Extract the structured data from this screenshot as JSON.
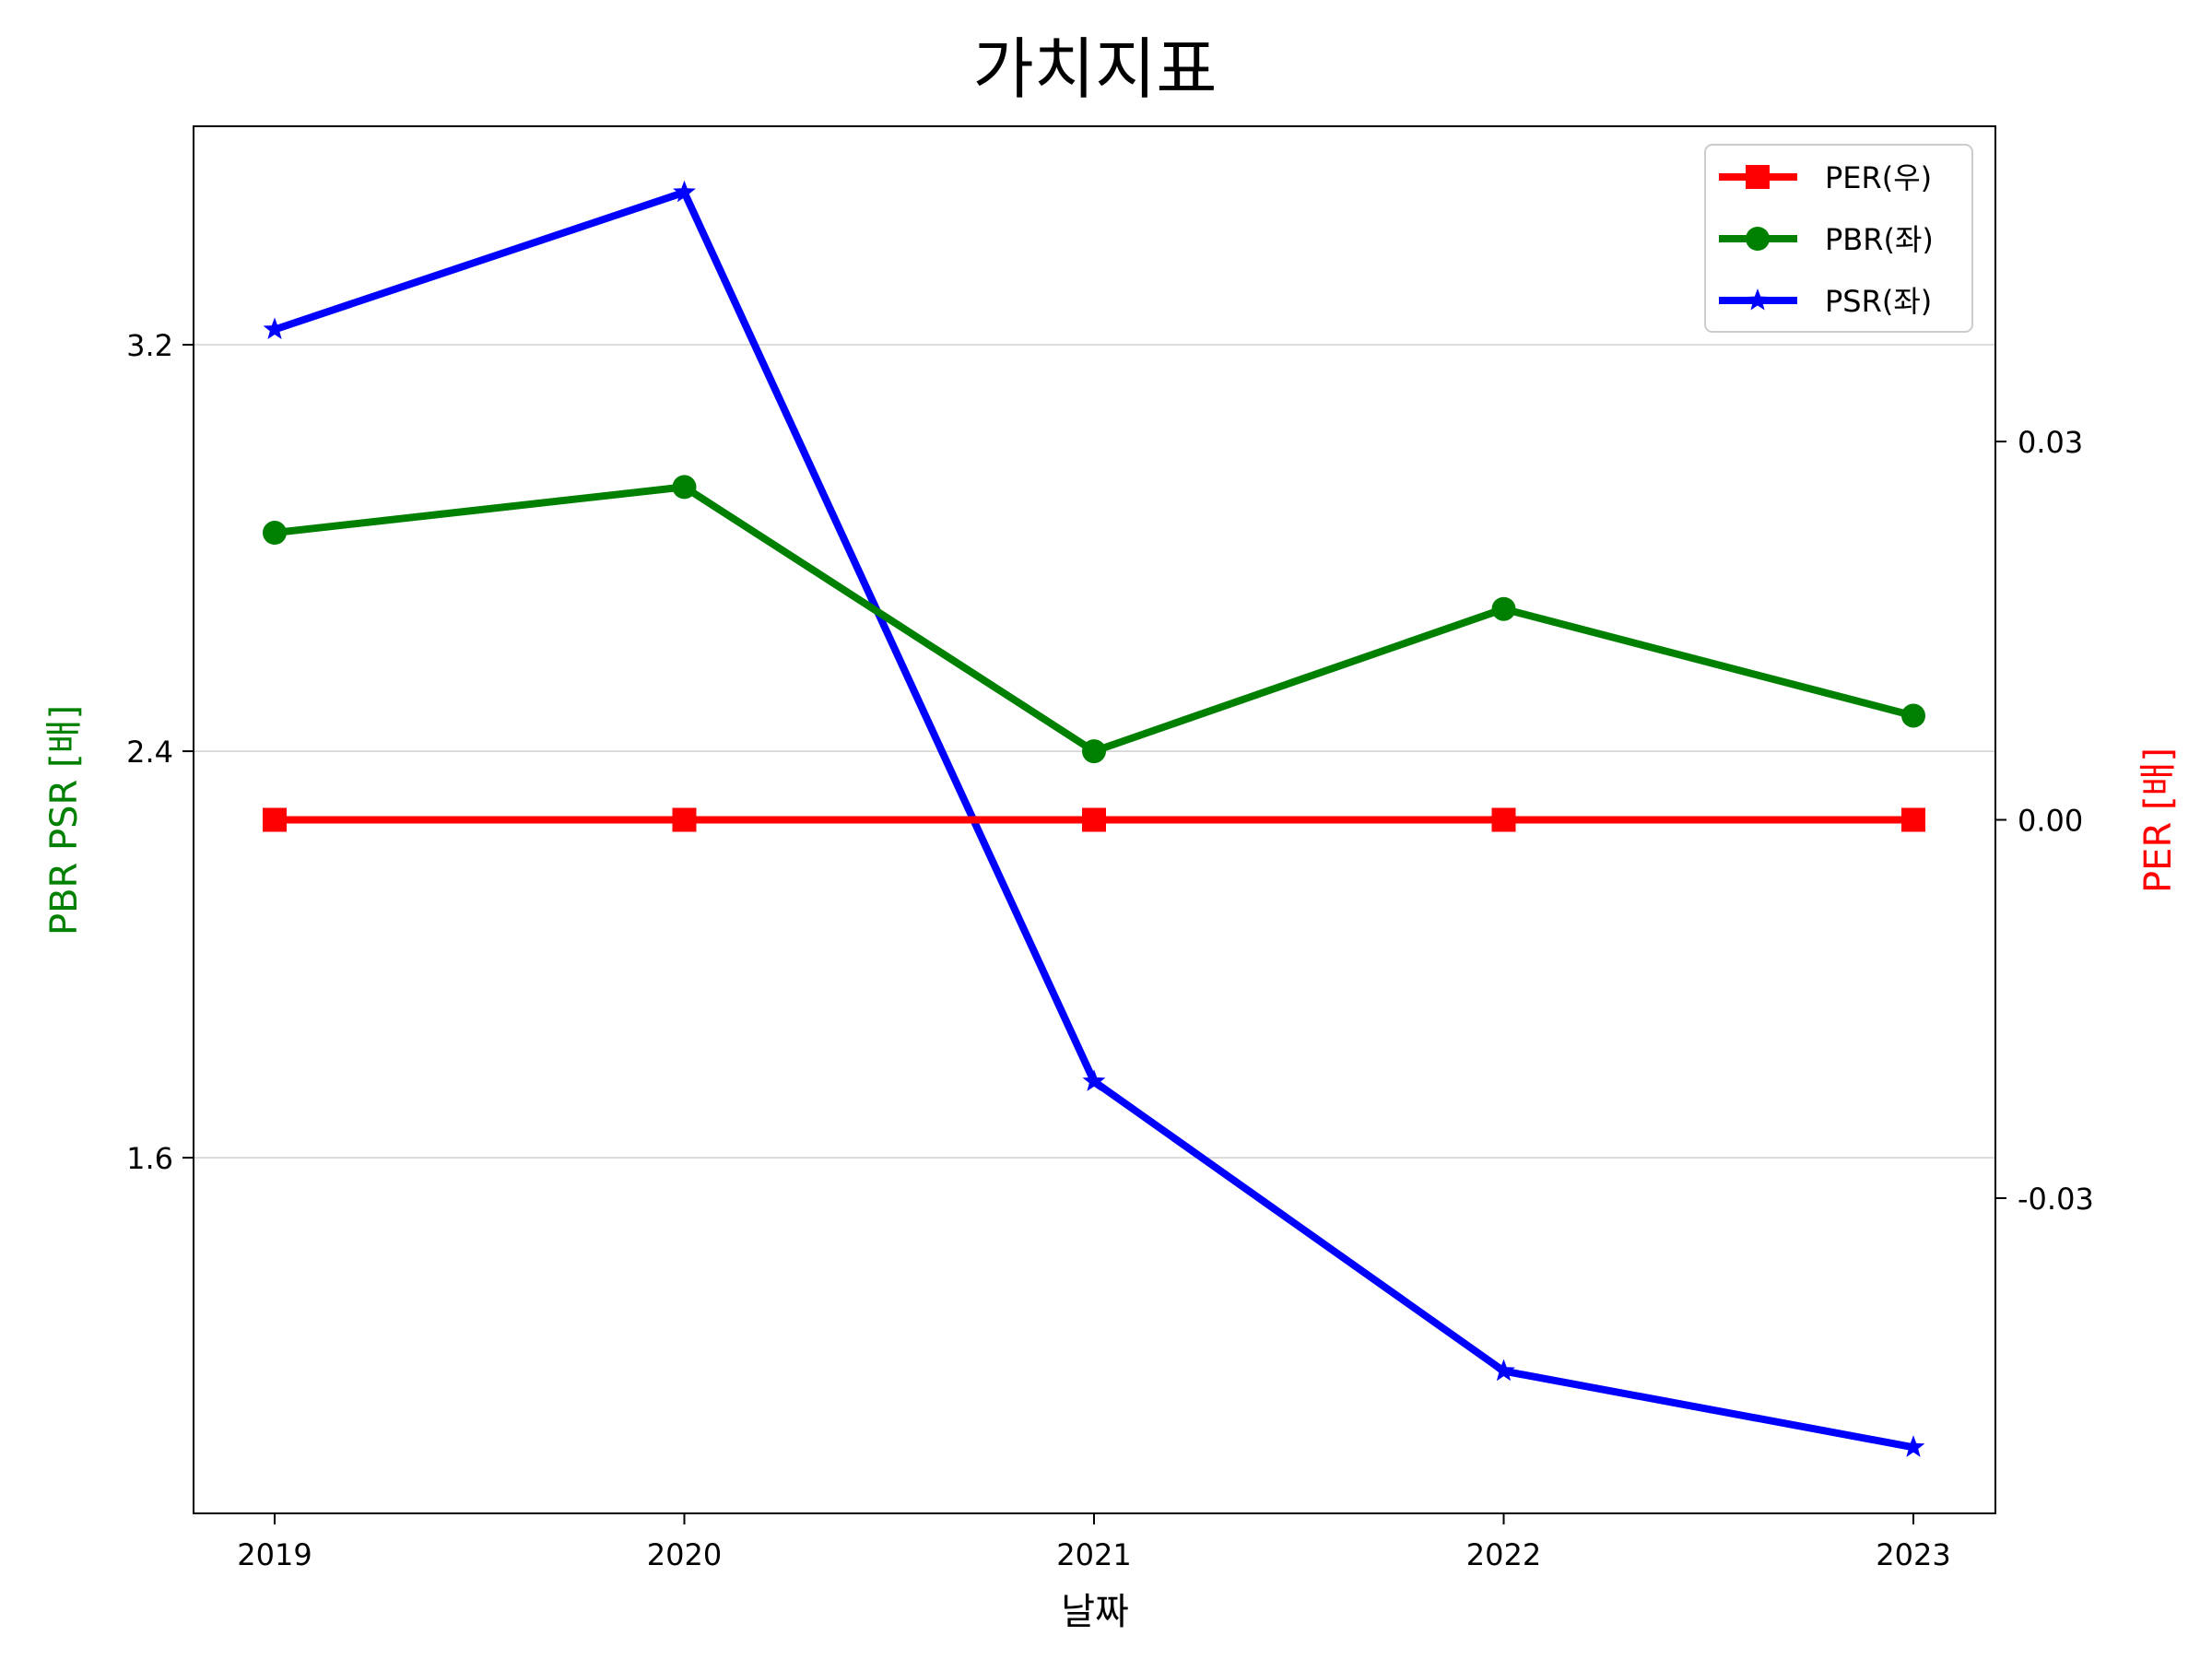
{
  "chart_data": {
    "type": "line",
    "title": "가치지표",
    "xlabel": "날짜",
    "ylabel_left": "PBR PSR [배]",
    "ylabel_right": "PER [배]",
    "ylabel_left_color": "#008000",
    "ylabel_right_color": "#ff0000",
    "categories": [
      "2019",
      "2020",
      "2021",
      "2022",
      "2023"
    ],
    "ylim_left": [
      0.9,
      3.63
    ],
    "yticks_left": [
      1.6,
      2.4,
      3.2
    ],
    "yticks_left_labels": [
      "1.6",
      "2.4",
      "3.2"
    ],
    "ylim_right": [
      -0.055,
      0.055
    ],
    "yticks_right": [
      -0.03,
      0.0,
      0.03
    ],
    "yticks_right_labels": [
      "-0.03",
      "0.00",
      "0.03"
    ],
    "grid": "horizontal (left axis)",
    "legend_position": "top-right",
    "series": [
      {
        "name": "PER(우)",
        "axis": "right",
        "color": "#ff0000",
        "marker": "square",
        "values": [
          0.0,
          0.0,
          0.0,
          0.0,
          0.0
        ]
      },
      {
        "name": "PBR(좌)",
        "axis": "left",
        "color": "#008000",
        "marker": "circle",
        "values": [
          2.83,
          2.92,
          2.4,
          2.68,
          2.47
        ]
      },
      {
        "name": "PSR(좌)",
        "axis": "left",
        "color": "#0000ff",
        "marker": "star",
        "values": [
          3.23,
          3.5,
          1.75,
          1.18,
          1.03
        ]
      }
    ]
  }
}
